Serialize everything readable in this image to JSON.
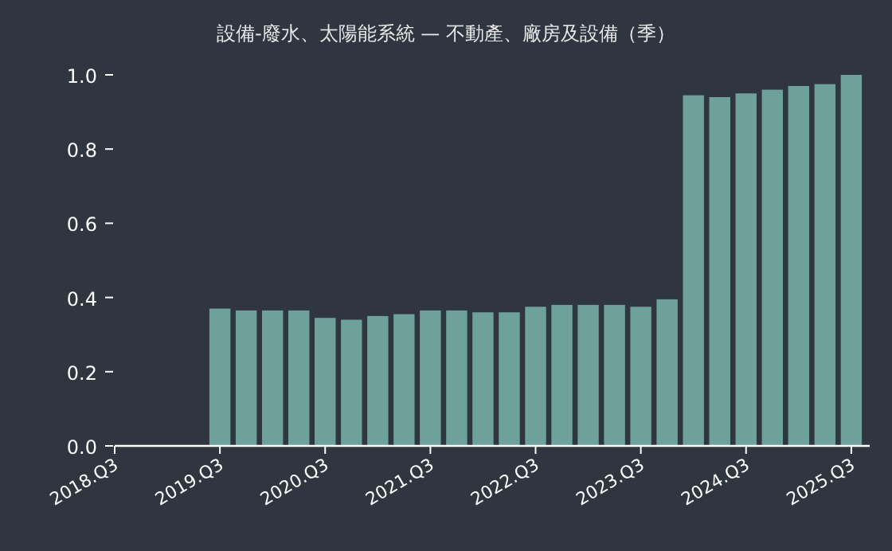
{
  "chart_data": {
    "type": "bar",
    "title": "設備-廢水、太陽能系統 — 不動產、廠房及設備（季）",
    "categories": [
      "2018.Q3",
      null,
      null,
      null,
      "2019.Q3",
      null,
      null,
      null,
      "2020.Q3",
      null,
      null,
      null,
      "2021.Q3",
      null,
      null,
      null,
      "2022.Q3",
      null,
      null,
      null,
      "2023.Q3",
      null,
      null,
      null,
      "2024.Q3",
      null,
      null,
      null,
      "2025.Q3"
    ],
    "values": [
      null,
      null,
      null,
      null,
      0.37,
      0.365,
      0.365,
      0.365,
      0.345,
      0.34,
      0.35,
      0.355,
      0.365,
      0.365,
      0.36,
      0.36,
      0.375,
      0.38,
      0.38,
      0.38,
      0.375,
      0.395,
      0.945,
      0.94,
      0.95,
      0.96,
      0.97,
      0.975,
      1.0
    ],
    "color": "#6fa19b",
    "ylim": [
      0,
      1.0
    ],
    "yticks": [
      {
        "value": 0,
        "label": "0.0"
      },
      {
        "value": 0.2,
        "label": "0.2"
      },
      {
        "value": 0.4,
        "label": "0.4"
      },
      {
        "value": 0.6,
        "label": "0.6"
      },
      {
        "value": 0.8,
        "label": "0.8"
      },
      {
        "value": 1.0,
        "label": "1.0"
      }
    ],
    "grid": false
  }
}
